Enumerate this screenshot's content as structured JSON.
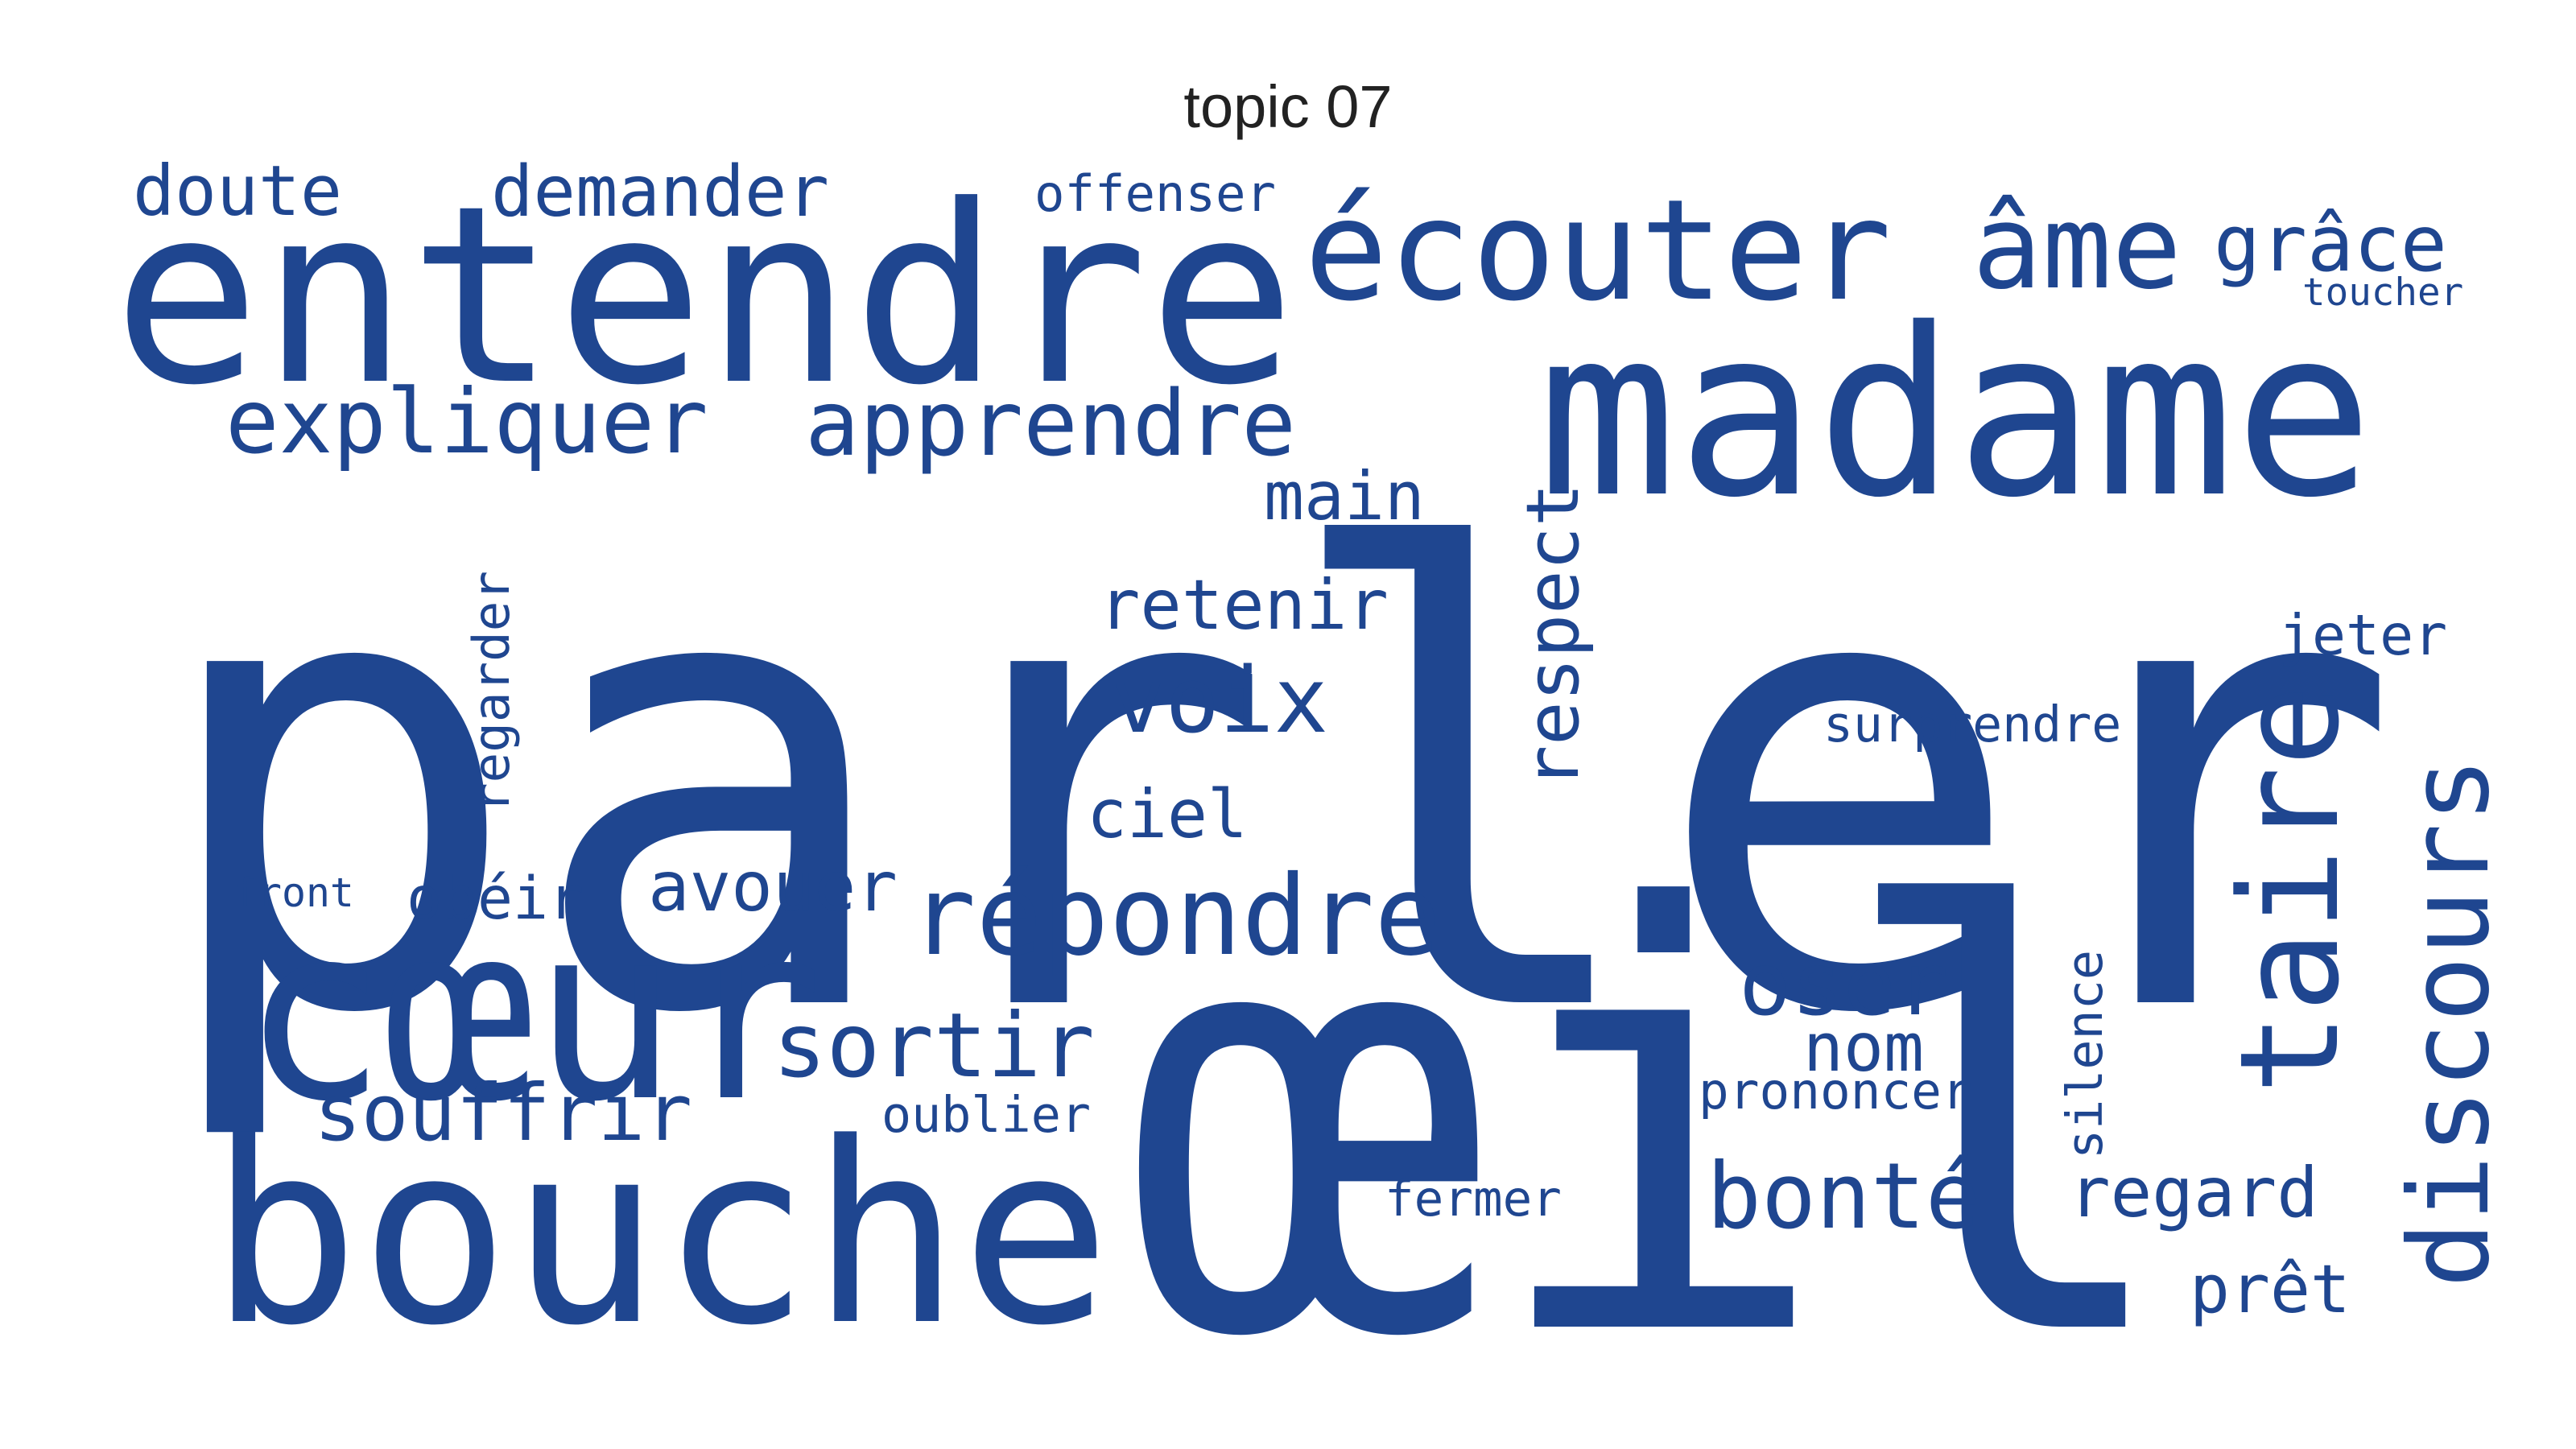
{
  "title": "topic 07",
  "word_color": "#1f4690",
  "words": [
    "parler",
    "œil",
    "madame",
    "entendre",
    "bouche",
    "cœur",
    "écouter",
    "taire",
    "répondre",
    "discours",
    "apprendre",
    "âme",
    "expliquer",
    "bonté",
    "voix",
    "sortir",
    "grâce",
    "oser",
    "demander",
    "regard",
    "doute",
    "souffrir",
    "respect",
    "retenir",
    "main",
    "ciel",
    "avouer",
    "nom",
    "prêt",
    "regarder",
    "surprendre",
    "offenser",
    "jeter",
    "obéir",
    "prononcer",
    "fermer",
    "oublier",
    "silence",
    "toucher",
    "front"
  ]
}
